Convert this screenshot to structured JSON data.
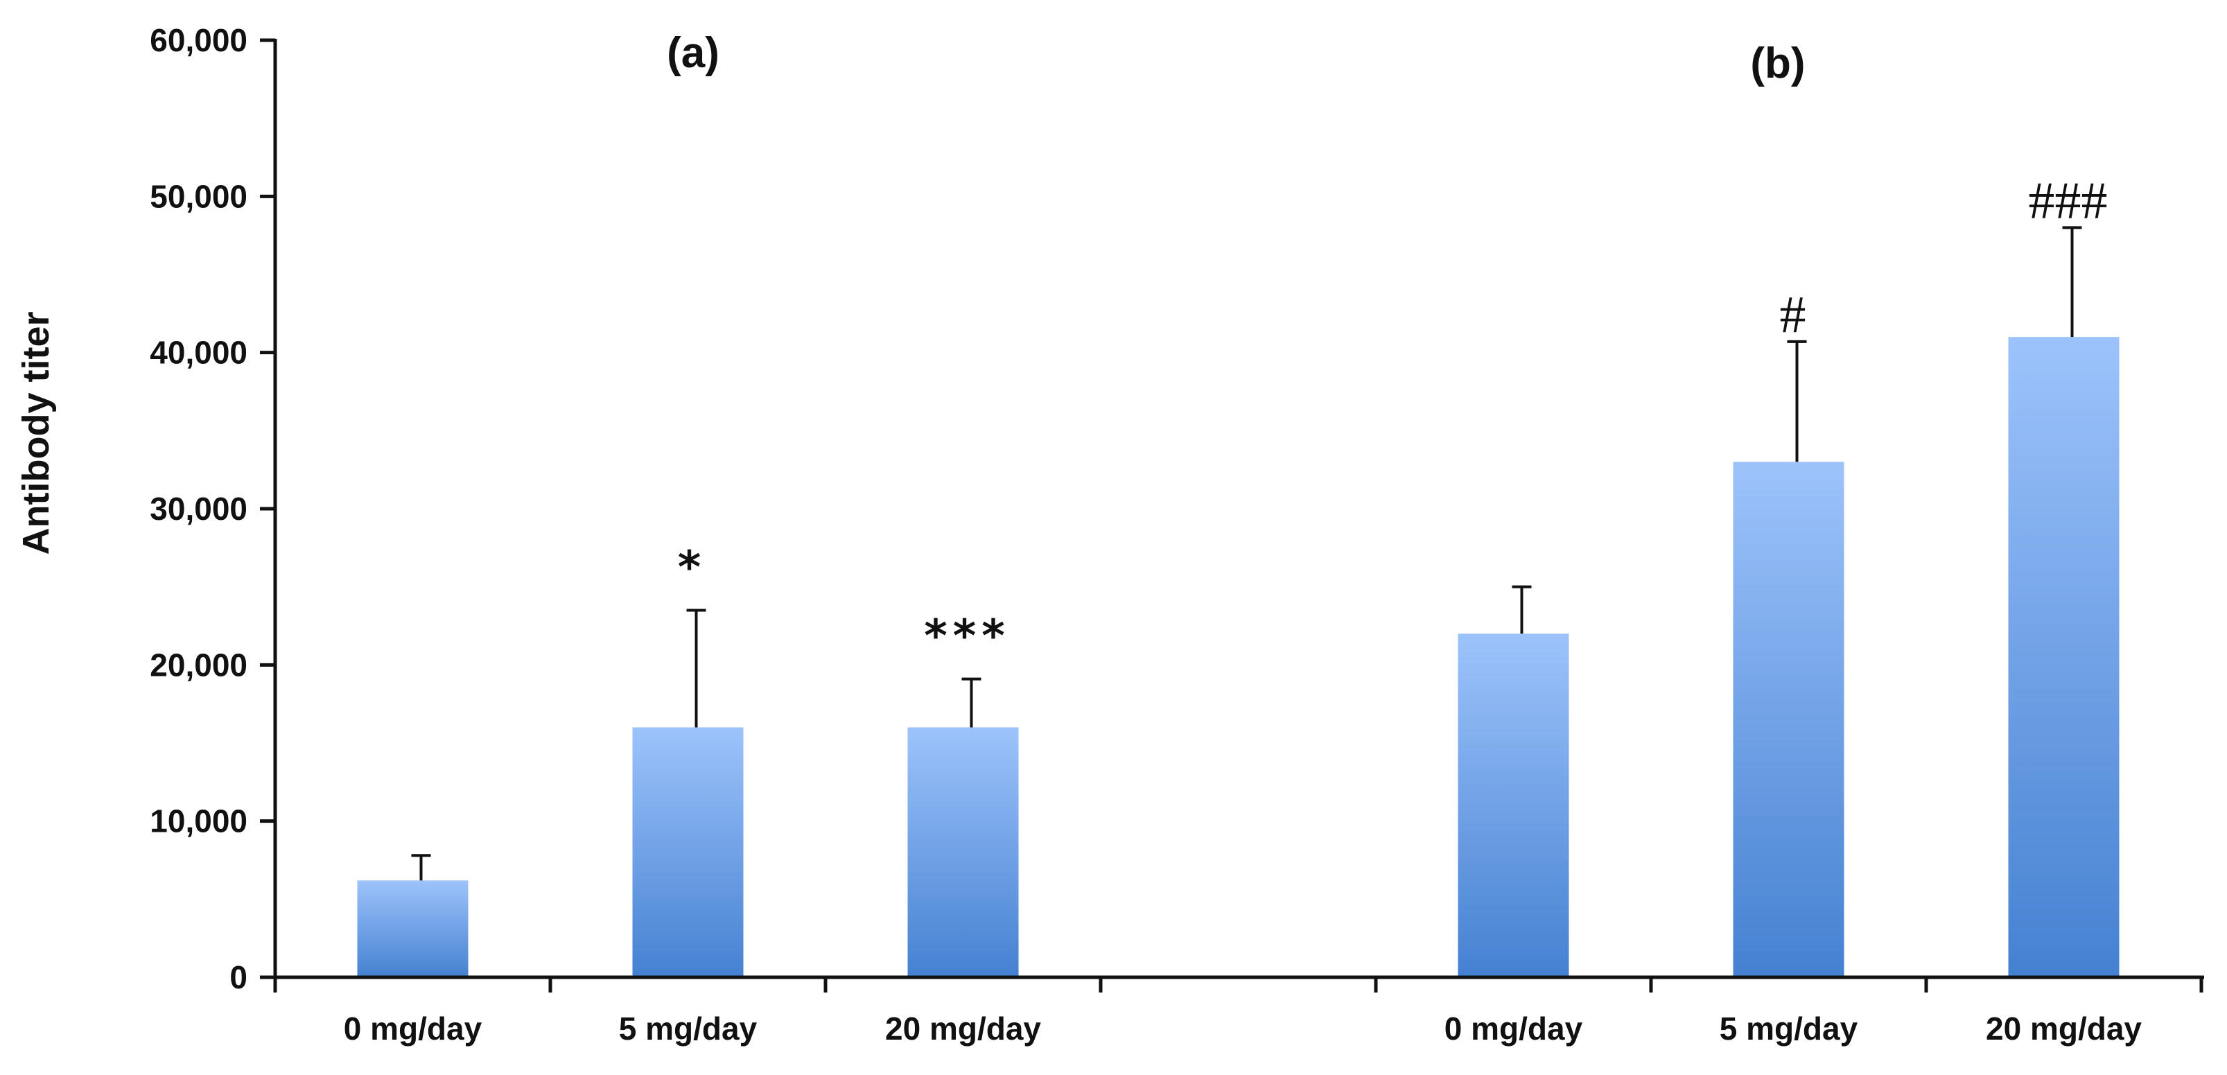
{
  "chart_data": {
    "type": "bar",
    "ylabel": "Antibody titer",
    "ylim": [
      0,
      60000
    ],
    "yticks": [
      0,
      10000,
      20000,
      30000,
      40000,
      50000,
      60000
    ],
    "ytick_labels": [
      "0",
      "10,000",
      "20,000",
      "30,000",
      "40,000",
      "50,000",
      "60,000"
    ],
    "grid": false,
    "bar_color_top": "#9dc3fb",
    "bar_color_bottom": "#4581d1",
    "categories": [
      "0 mg/day",
      "5 mg/day",
      "20 mg/day",
      "",
      "0 mg/day",
      "5 mg/day",
      "20 mg/day"
    ],
    "groups": [
      {
        "label": "(a)",
        "bars": [
          {
            "category": "0 mg/day",
            "value": 6200,
            "error": 1600,
            "significance": ""
          },
          {
            "category": "5 mg/day",
            "value": 16000,
            "error": 7500,
            "significance": "*"
          },
          {
            "category": "20 mg/day",
            "value": 16000,
            "error": 3100,
            "significance": "***"
          }
        ]
      },
      {
        "label": "(b)",
        "bars": [
          {
            "category": "0 mg/day",
            "value": 22000,
            "error": 3000,
            "significance": ""
          },
          {
            "category": "5 mg/day",
            "value": 33000,
            "error": 7700,
            "significance": "#"
          },
          {
            "category": "20 mg/day",
            "value": 41000,
            "error": 7000,
            "significance": "###"
          }
        ]
      }
    ]
  }
}
